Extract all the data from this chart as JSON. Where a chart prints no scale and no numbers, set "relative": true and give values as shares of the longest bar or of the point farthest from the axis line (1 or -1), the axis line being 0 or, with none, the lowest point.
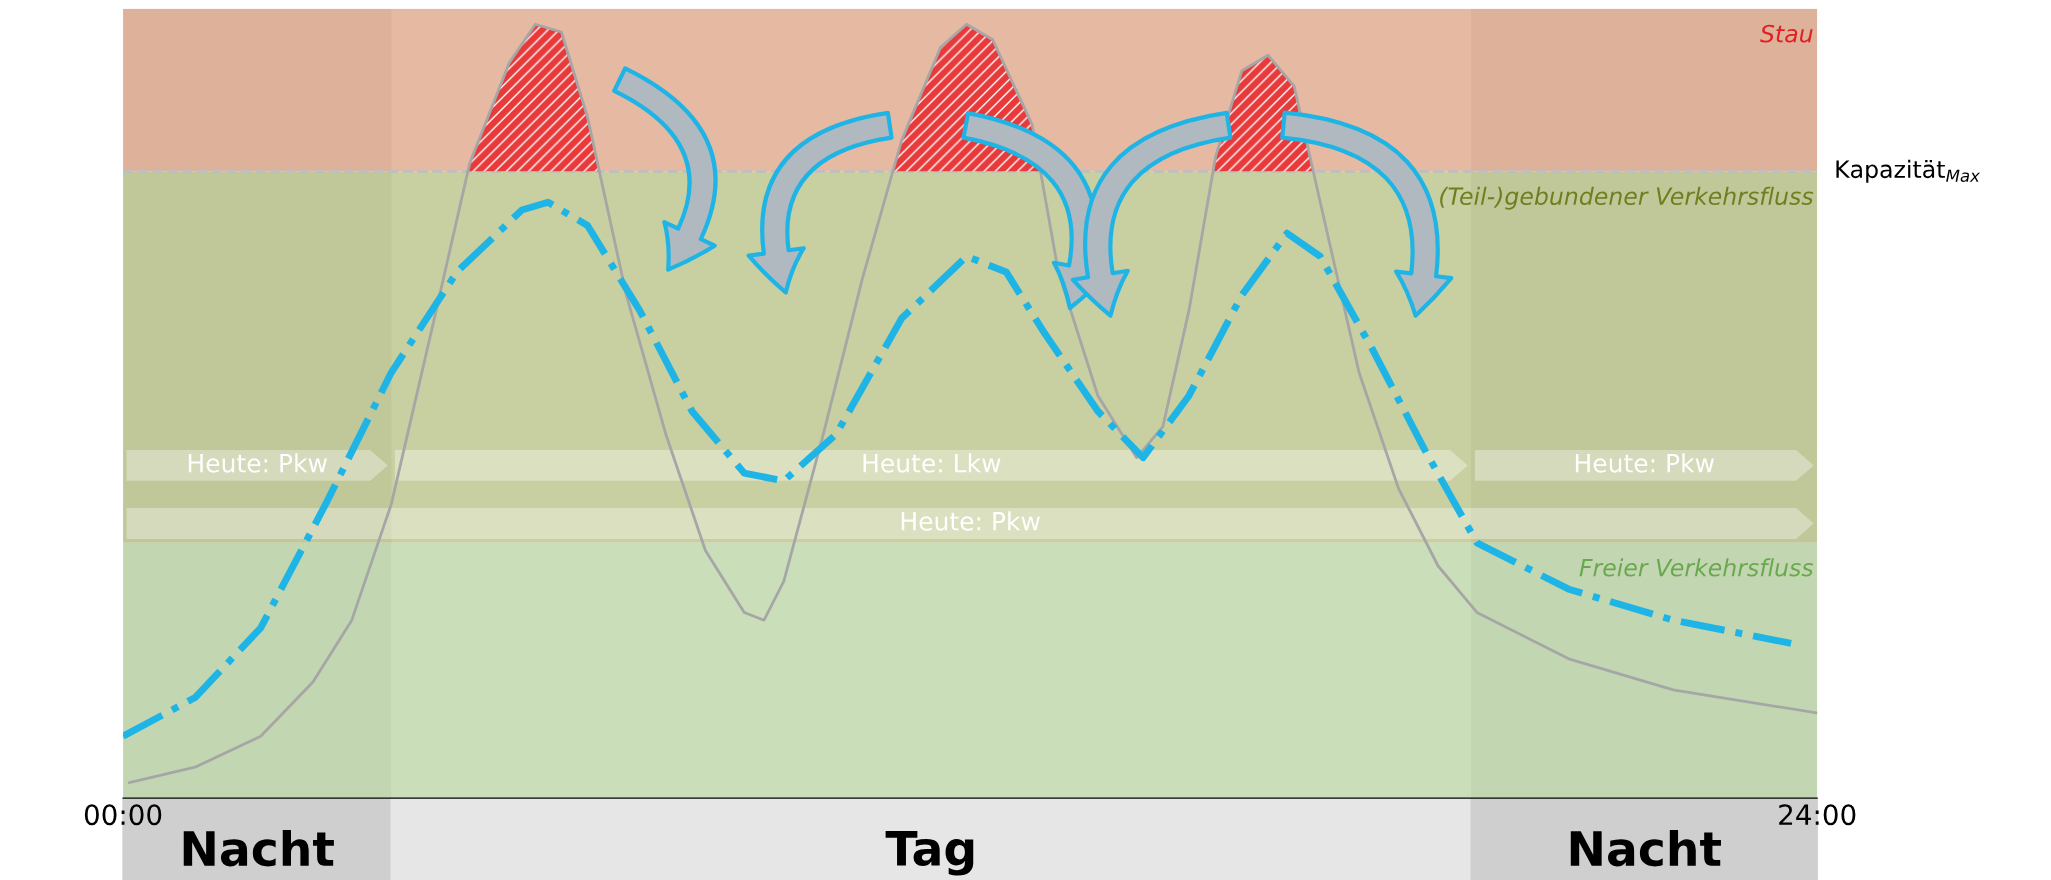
{
  "chart_data": {
    "type": "line",
    "relative": true,
    "x": [
      0.09,
      1.02,
      1.95,
      2.69,
      3.24,
      3.8,
      4.36,
      4.91,
      5.47,
      5.84,
      6.21,
      6.58,
      7.13,
      7.69,
      8.25,
      8.8,
      9.08,
      9.36,
      9.92,
      10.47,
      11.03,
      11.58,
      11.95,
      12.32,
      12.88,
      13.25,
      13.81,
      14.36,
      14.73,
      15.1,
      15.48,
      15.85,
      16.22,
      16.59,
      16.96,
      17.51,
      18.07,
      18.63,
      19.18,
      20.48,
      21.96,
      24.0
    ],
    "xlim": [
      0,
      24
    ],
    "xticks": [
      {
        "value": 0,
        "label": "00:00"
      },
      {
        "value": 24,
        "label": "24:00"
      }
    ],
    "series": [
      {
        "color": "#a6a6a6",
        "line_style": "solid",
        "values": [
          0.02,
          0.04,
          0.08,
          0.15,
          0.23,
          0.38,
          0.6,
          0.82,
          0.95,
          1.0,
          0.99,
          0.88,
          0.65,
          0.47,
          0.32,
          0.24,
          0.23,
          0.28,
          0.47,
          0.67,
          0.85,
          0.97,
          1.0,
          0.98,
          0.87,
          0.68,
          0.52,
          0.44,
          0.48,
          0.63,
          0.83,
          0.94,
          0.96,
          0.92,
          0.77,
          0.55,
          0.4,
          0.3,
          0.24,
          0.18,
          0.14,
          0.11
        ]
      },
      {
        "color": "#1fb4e6",
        "line_style": "dashdot",
        "x": [
          0,
          1.02,
          1.95,
          2.87,
          3.8,
          4.73,
          5.65,
          6.02,
          6.58,
          7.32,
          8.06,
          8.8,
          9.36,
          10.1,
          11.03,
          11.95,
          12.51,
          13.06,
          13.81,
          14.45,
          15.1,
          15.85,
          16.49,
          16.96,
          17.7,
          18.44,
          19.18,
          20.48,
          21.96,
          23.63
        ],
        "values": [
          0.08,
          0.13,
          0.22,
          0.38,
          0.55,
          0.68,
          0.76,
          0.77,
          0.74,
          0.63,
          0.5,
          0.42,
          0.41,
          0.47,
          0.62,
          0.7,
          0.68,
          0.6,
          0.5,
          0.44,
          0.52,
          0.65,
          0.73,
          0.7,
          0.58,
          0.45,
          0.33,
          0.27,
          0.23,
          0.2
        ]
      }
    ],
    "ref_lines": [
      {
        "axis": "y",
        "value": 0.81,
        "label": "Kapazität$_{Max}$",
        "color": "#bfbfbf",
        "line_style": "dashed"
      }
    ],
    "bands": [
      {
        "axis": "y",
        "from": 0.81,
        "to": 1.02,
        "label": "Stau",
        "color": "#e6a27f"
      },
      {
        "axis": "y",
        "from": 0.33,
        "to": 0.81,
        "label": "(Teil-)gebundener Verkehrsfluss",
        "color": "#b9c47c"
      },
      {
        "axis": "y",
        "from": 0,
        "to": 0.33,
        "label": "Freier Verkehrsfluss",
        "color": "#bcdca2"
      },
      {
        "axis": "x",
        "from": 0,
        "to": 3.8,
        "label": "Nacht",
        "color": "#cfcfcf"
      },
      {
        "axis": "x",
        "from": 3.8,
        "to": 19.1,
        "label": "Tag",
        "color": "#e6e6e6"
      },
      {
        "axis": "x",
        "from": 19.1,
        "to": 24,
        "label": "Nacht",
        "color": "#cfcfcf"
      }
    ],
    "annotations": [
      "Heute: Pkw",
      "Heute: Lkw",
      "Heute: Pkw",
      "Heute: Pkw"
    ],
    "grid": false,
    "legend": false,
    "marker": "none"
  }
}
